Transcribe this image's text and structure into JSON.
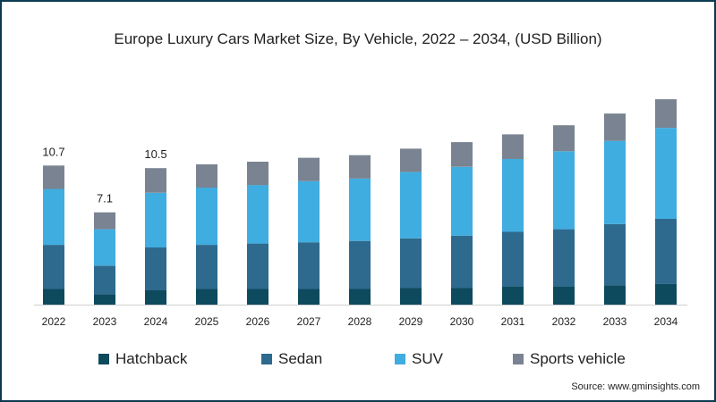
{
  "chart_data": {
    "type": "bar",
    "stacked": true,
    "title": "Europe Luxury Cars Market Size, By Vehicle, 2022 – 2034, (USD Billion)",
    "categories": [
      "2022",
      "2023",
      "2024",
      "2025",
      "2026",
      "2027",
      "2028",
      "2029",
      "2030",
      "2031",
      "2032",
      "2033",
      "2034"
    ],
    "series": [
      {
        "name": "Hatchback",
        "color": "#0d4a5e",
        "values": [
          1.2,
          0.8,
          1.1,
          1.2,
          1.2,
          1.2,
          1.2,
          1.3,
          1.3,
          1.4,
          1.4,
          1.5,
          1.6
        ]
      },
      {
        "name": "Sedan",
        "color": "#2d6a8e",
        "values": [
          3.4,
          2.2,
          3.3,
          3.4,
          3.5,
          3.6,
          3.7,
          3.8,
          4.0,
          4.2,
          4.4,
          4.7,
          5.0
        ]
      },
      {
        "name": "SUV",
        "color": "#40ade0",
        "values": [
          4.3,
          2.8,
          4.2,
          4.4,
          4.5,
          4.7,
          4.8,
          5.1,
          5.3,
          5.6,
          6.0,
          6.4,
          7.0
        ]
      },
      {
        "name": "Sports vehicle",
        "color": "#7a8391",
        "values": [
          1.8,
          1.3,
          1.9,
          1.8,
          1.8,
          1.8,
          1.8,
          1.8,
          1.9,
          1.9,
          2.0,
          2.1,
          2.2
        ]
      }
    ],
    "data_labels": [
      {
        "category": "2022",
        "text": "10.7"
      },
      {
        "category": "2023",
        "text": "7.1"
      },
      {
        "category": "2024",
        "text": "10.5"
      }
    ],
    "ylim": [
      0,
      16
    ],
    "xlabel": "",
    "ylabel": "",
    "grid": false,
    "legend": "bottom"
  },
  "source": "Source: www.gminsights.com"
}
